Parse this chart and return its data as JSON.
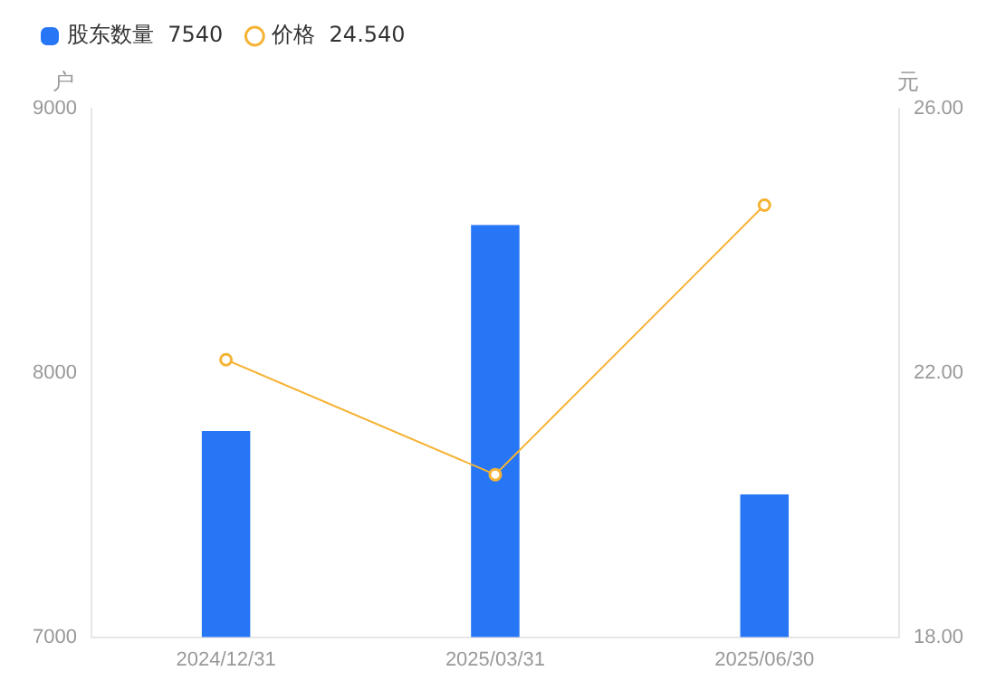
{
  "chart_data": {
    "type": "bar",
    "categories": [
      "2024/12/31",
      "2025/03/31",
      "2025/06/30"
    ],
    "series": [
      {
        "name": "股东数量  7540",
        "color": "#2776f6",
        "values": [
          7780,
          8560,
          7540
        ]
      },
      {
        "name": "价格  24.540",
        "type": "line",
        "axis": "y2",
        "color": "#f5b335",
        "values": [
          22.2,
          20.46,
          24.54
        ]
      }
    ],
    "ylabel": "户",
    "y2label": "元",
    "ylim": [
      7000,
      9000
    ],
    "yticks": [
      7000,
      8000,
      9000
    ],
    "y2lim": [
      18,
      26
    ],
    "y2ticks": [
      {
        "value": 18,
        "label": "18.00"
      },
      {
        "value": 22,
        "label": "22.00"
      },
      {
        "value": 26,
        "label": "26.00"
      }
    ],
    "grid": false,
    "legend": "top left",
    "marker": "circle",
    "line_style": "solid"
  }
}
